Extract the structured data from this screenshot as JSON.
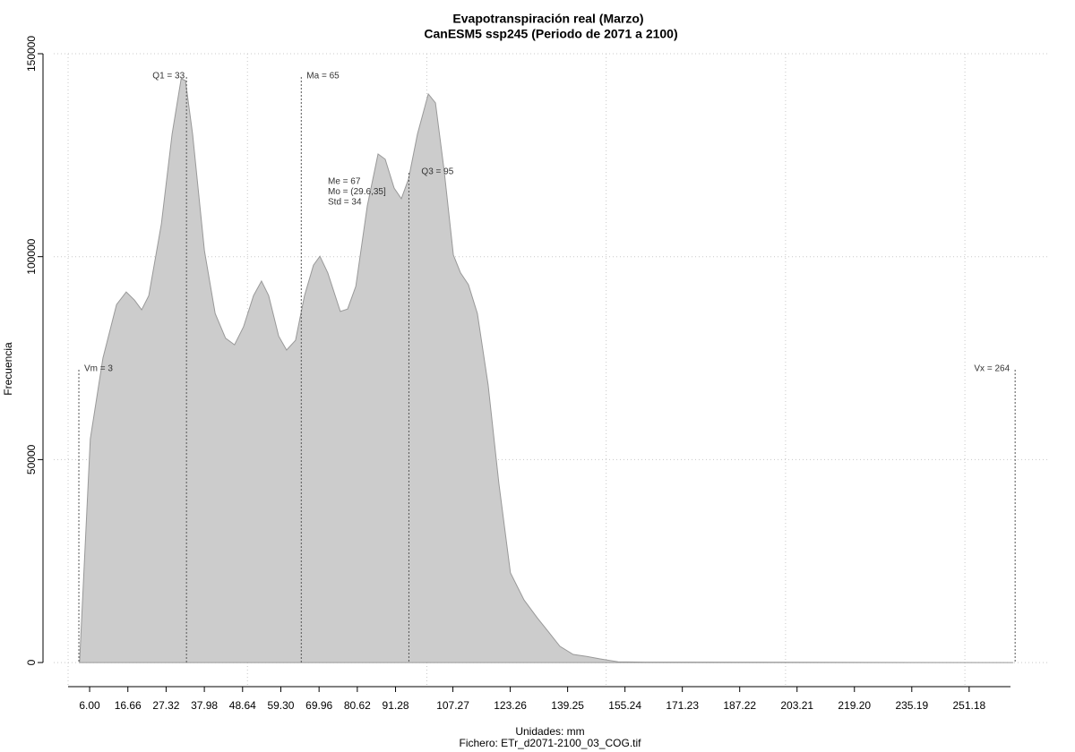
{
  "chart_data": {
    "type": "area",
    "title": "Evapotranspiración real (Marzo)",
    "subtitle": "CanESM5 ssp245 (Periodo de 2071 a 2100)",
    "x_label": "Unidades: mm",
    "file_label": "Fichero: ETr_d2071-2100_03_COG.tif",
    "y_label": "Frecuencia",
    "color": "#cccccc",
    "line_color": "#999999",
    "grid": true,
    "xlim": [
      -4,
      273.2
    ],
    "ylim": [
      -5500,
      150000
    ],
    "yticks": [
      0,
      50000,
      100000,
      150000
    ],
    "xgrid": [
      0,
      50,
      100,
      150,
      200,
      250
    ],
    "xticks": [
      {
        "value": 6,
        "label": "6.00"
      },
      16.66,
      27.32,
      37.98,
      48.64,
      {
        "value": 59.3,
        "label": "59.30"
      },
      69.96,
      80.62,
      91.28,
      107.27,
      123.26,
      139.25,
      155.24,
      171.23,
      187.22,
      203.21,
      {
        "value": 219.2,
        "label": "219.20"
      },
      235.19,
      251.18
    ],
    "x": [
      3.2,
      6.2,
      9.7,
      13.5,
      16.2,
      18.5,
      20.5,
      22.5,
      26,
      29,
      31.5,
      32.7,
      34.7,
      38,
      41,
      43.9,
      46.4,
      48.9,
      51.7,
      53.9,
      55.9,
      58.7,
      60.9,
      63.4,
      65.9,
      68.4,
      70.2,
      72.4,
      75.9,
      77.9,
      80.2,
      83.4,
      86.4,
      88.4,
      90.9,
      92.9,
      94.9,
      97.4,
      100.4,
      102.4,
      104.8,
      107.4,
      109.4,
      111.6,
      114.1,
      117.1,
      120.1,
      123.3,
      127.1,
      130.8,
      133.8,
      137.1,
      140.8,
      144.6,
      148.3,
      153.3,
      160.8,
      263.5
    ],
    "values": [
      0,
      55100,
      75000,
      88200,
      91300,
      89300,
      86900,
      90400,
      108000,
      130200,
      143800,
      143400,
      130200,
      101500,
      86000,
      79900,
      78300,
      82700,
      90400,
      94000,
      90400,
      80400,
      77000,
      79400,
      90400,
      97900,
      100100,
      96000,
      86500,
      87100,
      92700,
      112500,
      125300,
      124000,
      116900,
      114300,
      119100,
      130200,
      140100,
      137900,
      121400,
      100400,
      96000,
      93100,
      86000,
      68400,
      44100,
      22100,
      15400,
      11000,
      7700,
      4000,
      2000,
      1500,
      900,
      200,
      100,
      0
    ],
    "markers": [
      {
        "label": "Vm = 3",
        "x": 3
      },
      {
        "label": "Q1 = 33",
        "x": 33
      },
      {
        "label": "Ma = 65",
        "x": 65
      },
      {
        "label": "Q3 = 95",
        "x": 95
      },
      {
        "label": "Vx = 264",
        "x": 264
      }
    ],
    "stats": [
      "Me = 67",
      "Mo = (29.6,35]",
      "Std = 34"
    ]
  }
}
